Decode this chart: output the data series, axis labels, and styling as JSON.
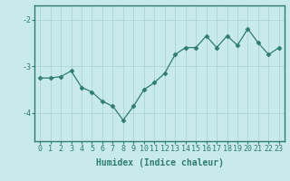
{
  "x": [
    0,
    1,
    2,
    3,
    4,
    5,
    6,
    7,
    8,
    9,
    10,
    11,
    12,
    13,
    14,
    15,
    16,
    17,
    18,
    19,
    20,
    21,
    22,
    23
  ],
  "y": [
    -3.25,
    -3.25,
    -3.22,
    -3.1,
    -3.45,
    -3.55,
    -3.75,
    -3.85,
    -4.15,
    -3.85,
    -3.5,
    -3.35,
    -3.15,
    -2.75,
    -2.6,
    -2.6,
    -2.35,
    -2.6,
    -2.35,
    -2.55,
    -2.2,
    -2.5,
    -2.75,
    -2.6
  ],
  "line_color": "#2e7d6e",
  "marker": "D",
  "marker_size": 2.5,
  "bg_color": "#c8eaea",
  "grid_color": "#b0d4d0",
  "axis_color": "#2e7d6e",
  "xlabel": "Humidex (Indice chaleur)",
  "xlabel_fontsize": 7,
  "title": "",
  "xlim": [
    -0.5,
    23.5
  ],
  "ylim": [
    -4.6,
    -1.7
  ],
  "yticks": [
    -4,
    -3,
    -2
  ],
  "ytick_labels": [
    "-4",
    "-3",
    "-2"
  ],
  "xticks": [
    0,
    1,
    2,
    3,
    4,
    5,
    6,
    7,
    8,
    9,
    10,
    11,
    12,
    13,
    14,
    15,
    16,
    17,
    18,
    19,
    20,
    21,
    22,
    23
  ],
  "tick_fontsize": 6
}
